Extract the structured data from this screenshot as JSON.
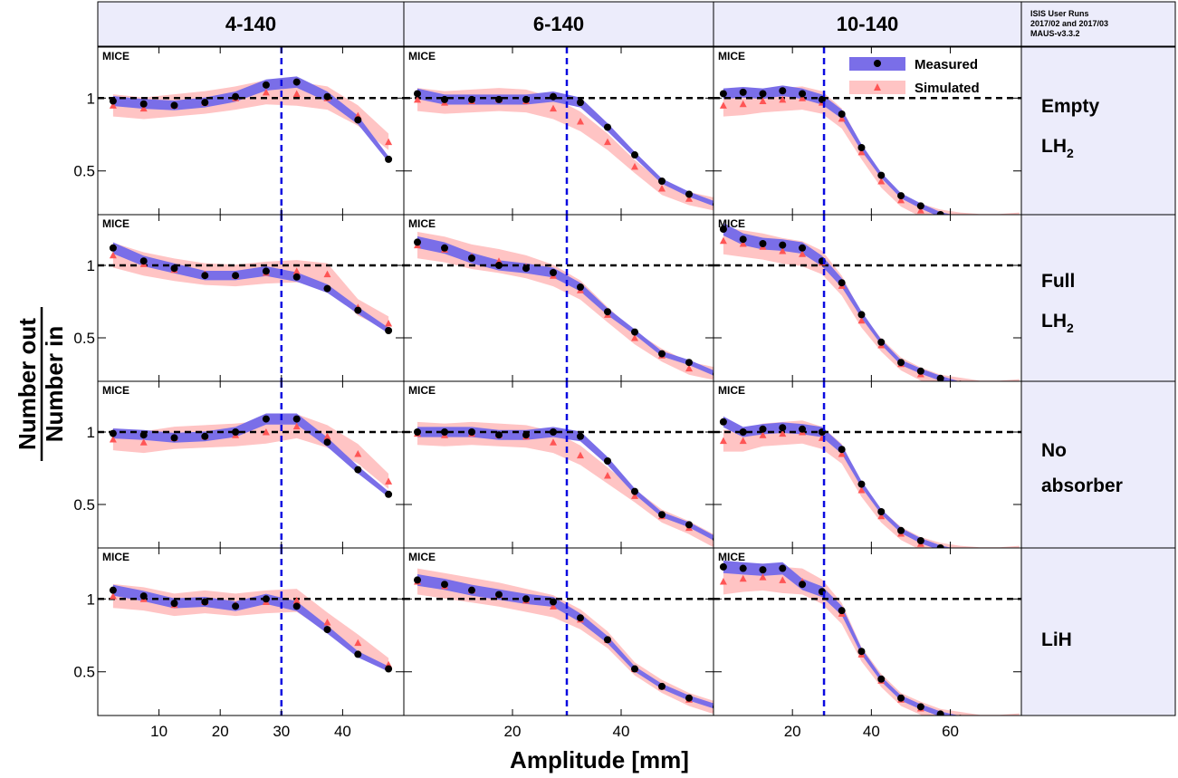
{
  "figure": {
    "ylabel_numerator": "Number out",
    "ylabel_denominator": "Number in",
    "xlabel": "Amplitude [mm]",
    "note_lines": [
      "ISIS User Runs",
      "2017/02 and 2017/03",
      "MAUS-v3.3.2"
    ],
    "panel_label": "MICE",
    "legend": {
      "measured": "Measured",
      "simulated": "Simulated"
    },
    "ytick_labels": [
      "1",
      "0.5"
    ],
    "colors": {
      "header_bg": "#ececfb",
      "measured_band": "#7a6ee8",
      "simulated_band": "#ffc4c4",
      "measured_marker": "#000000",
      "simulated_marker": "#ff5555",
      "cut_line": "#0a0ae0",
      "unity_line": "#000000"
    }
  },
  "chart_data": [
    {
      "type": "scatter",
      "title": "4-140",
      "xlabel": "Amplitude [mm]",
      "ylabel": "Number out / Number in",
      "xlim": [
        0,
        50
      ],
      "ylim": [
        0.2,
        1.35
      ],
      "xticks": [
        10,
        20,
        30,
        40
      ],
      "yticks": [
        0.5,
        1
      ],
      "cut_x": 30,
      "rows": [
        {
          "row": "Empty LH2",
          "x": [
            2.5,
            7.5,
            12.5,
            17.5,
            22.5,
            27.5,
            32.5,
            37.5,
            42.5,
            47.5
          ],
          "measured": [
            0.98,
            0.96,
            0.95,
            0.97,
            1.01,
            1.09,
            1.11,
            1.01,
            0.85,
            0.58
          ],
          "simulated": [
            0.95,
            0.93,
            0.95,
            0.97,
            1.0,
            1.04,
            1.03,
            1.0,
            0.88,
            0.7
          ]
        },
        {
          "row": "Full LH2",
          "x": [
            2.5,
            7.5,
            12.5,
            17.5,
            22.5,
            27.5,
            32.5,
            37.5,
            42.5,
            47.5
          ],
          "measured": [
            1.12,
            1.03,
            0.98,
            0.93,
            0.93,
            0.96,
            0.92,
            0.84,
            0.69,
            0.55
          ],
          "simulated": [
            1.07,
            1.01,
            0.97,
            0.94,
            0.93,
            0.95,
            0.96,
            0.94,
            0.71,
            0.6
          ]
        },
        {
          "row": "No absorber",
          "x": [
            2.5,
            7.5,
            12.5,
            17.5,
            22.5,
            27.5,
            32.5,
            37.5,
            42.5,
            47.5
          ],
          "measured": [
            0.99,
            0.98,
            0.96,
            0.97,
            1.0,
            1.09,
            1.09,
            0.93,
            0.74,
            0.57
          ],
          "simulated": [
            0.95,
            0.93,
            0.96,
            0.97,
            0.98,
            1.0,
            1.04,
            0.97,
            0.85,
            0.66
          ]
        },
        {
          "row": "LiH",
          "x": [
            2.5,
            7.5,
            12.5,
            17.5,
            22.5,
            27.5,
            32.5,
            37.5,
            42.5,
            47.5
          ],
          "measured": [
            1.06,
            1.02,
            0.97,
            0.98,
            0.95,
            1.0,
            0.95,
            0.79,
            0.62,
            0.52
          ],
          "simulated": [
            1.02,
            1.0,
            0.96,
            0.98,
            0.96,
            0.98,
            0.99,
            0.84,
            0.7,
            0.55
          ]
        }
      ]
    },
    {
      "type": "scatter",
      "title": "6-140",
      "xlabel": "Amplitude [mm]",
      "ylabel": "Number out / Number in",
      "xlim": [
        0,
        57
      ],
      "ylim": [
        0.2,
        1.35
      ],
      "xticks": [
        20,
        40
      ],
      "yticks": [
        0.5,
        1
      ],
      "cut_x": 30,
      "rows": [
        {
          "row": "Empty LH2",
          "x": [
            2.5,
            7.5,
            12.5,
            17.5,
            22.5,
            27.5,
            32.5,
            37.5,
            42.5,
            47.5,
            52.5,
            57.5
          ],
          "measured": [
            1.03,
            0.99,
            0.99,
            0.99,
            0.99,
            1.01,
            0.97,
            0.8,
            0.61,
            0.43,
            0.34,
            0.27
          ],
          "simulated": [
            0.99,
            0.97,
            0.98,
            0.99,
            0.98,
            0.93,
            0.84,
            0.7,
            0.53,
            0.38,
            0.31,
            0.27
          ]
        },
        {
          "row": "Full LH2",
          "x": [
            2.5,
            7.5,
            12.5,
            17.5,
            22.5,
            27.5,
            32.5,
            37.5,
            42.5,
            47.5,
            52.5,
            57.5
          ],
          "measured": [
            1.16,
            1.12,
            1.05,
            1.0,
            0.98,
            0.95,
            0.85,
            0.68,
            0.54,
            0.39,
            0.33,
            0.25
          ],
          "simulated": [
            1.14,
            1.11,
            1.06,
            1.03,
            0.99,
            0.93,
            0.83,
            0.66,
            0.5,
            0.38,
            0.29,
            0.25
          ]
        },
        {
          "row": "No absorber",
          "x": [
            2.5,
            7.5,
            12.5,
            17.5,
            22.5,
            27.5,
            32.5,
            37.5,
            42.5,
            47.5,
            52.5,
            57.5
          ],
          "measured": [
            1.0,
            1.0,
            1.0,
            0.98,
            0.98,
            1.0,
            0.97,
            0.8,
            0.59,
            0.43,
            0.36,
            0.26
          ],
          "simulated": [
            0.99,
            0.98,
            0.99,
            0.98,
            0.97,
            0.93,
            0.84,
            0.7,
            0.56,
            0.42,
            0.34,
            0.24
          ]
        },
        {
          "row": "LiH",
          "x": [
            2.5,
            7.5,
            12.5,
            17.5,
            22.5,
            27.5,
            32.5,
            37.5,
            42.5,
            47.5,
            52.5,
            57.5
          ],
          "measured": [
            1.13,
            1.1,
            1.06,
            1.03,
            1.0,
            0.98,
            0.87,
            0.72,
            0.52,
            0.4,
            0.32,
            0.26
          ],
          "simulated": [
            1.12,
            1.09,
            1.06,
            1.03,
            0.99,
            0.95,
            0.86,
            0.72,
            0.52,
            0.4,
            0.31,
            0.25
          ]
        }
      ]
    },
    {
      "type": "scatter",
      "title": "10-140",
      "xlabel": "Amplitude [mm]",
      "ylabel": "Number out / Number in",
      "xlim": [
        0,
        78
      ],
      "ylim": [
        0.2,
        1.35
      ],
      "xticks": [
        20,
        40,
        60
      ],
      "yticks": [
        0.5,
        1
      ],
      "cut_x": 28,
      "rows": [
        {
          "row": "Empty LH2",
          "x": [
            2.5,
            7.5,
            12.5,
            17.5,
            22.5,
            27.5,
            32.5,
            37.5,
            42.5,
            47.5,
            52.5,
            57.5,
            62.5,
            67.5,
            72.5,
            77.5
          ],
          "measured": [
            1.03,
            1.04,
            1.03,
            1.05,
            1.03,
            0.99,
            0.89,
            0.66,
            0.47,
            0.33,
            0.26,
            0.2,
            0.17,
            0.16,
            0.15,
            0.16
          ],
          "simulated": [
            0.95,
            0.96,
            0.98,
            0.99,
            1.0,
            0.97,
            0.86,
            0.63,
            0.43,
            0.3,
            0.23,
            0.19,
            0.17,
            0.16,
            0.16,
            0.17
          ]
        },
        {
          "row": "Full LH2",
          "x": [
            2.5,
            7.5,
            12.5,
            17.5,
            22.5,
            27.5,
            32.5,
            37.5,
            42.5,
            47.5,
            52.5,
            57.5,
            62.5,
            67.5,
            72.5,
            77.5
          ],
          "measured": [
            1.25,
            1.18,
            1.15,
            1.14,
            1.12,
            1.03,
            0.88,
            0.66,
            0.47,
            0.33,
            0.27,
            0.22,
            0.18,
            0.16,
            0.16,
            0.17
          ],
          "simulated": [
            1.17,
            1.15,
            1.13,
            1.1,
            1.08,
            1.02,
            0.86,
            0.62,
            0.45,
            0.32,
            0.25,
            0.2,
            0.18,
            0.16,
            0.16,
            0.17
          ]
        },
        {
          "row": "No absorber",
          "x": [
            2.5,
            7.5,
            12.5,
            17.5,
            22.5,
            27.5,
            32.5,
            37.5,
            42.5,
            47.5,
            52.5,
            57.5,
            62.5,
            67.5,
            72.5,
            77.5
          ],
          "measured": [
            1.07,
            1.0,
            1.02,
            1.03,
            1.02,
            1.0,
            0.88,
            0.64,
            0.45,
            0.32,
            0.25,
            0.2,
            0.17,
            0.16,
            0.15,
            0.16
          ],
          "simulated": [
            0.94,
            0.94,
            0.98,
            0.99,
            1.0,
            0.96,
            0.85,
            0.6,
            0.42,
            0.3,
            0.23,
            0.19,
            0.17,
            0.16,
            0.16,
            0.17
          ]
        },
        {
          "row": "LiH",
          "x": [
            2.5,
            7.5,
            12.5,
            17.5,
            22.5,
            27.5,
            32.5,
            37.5,
            42.5,
            47.5,
            52.5,
            57.5,
            62.5,
            67.5,
            72.5,
            77.5
          ],
          "measured": [
            1.22,
            1.21,
            1.2,
            1.21,
            1.1,
            1.05,
            0.92,
            0.64,
            0.45,
            0.32,
            0.26,
            0.21,
            0.18,
            0.16,
            0.16,
            0.17
          ],
          "simulated": [
            1.12,
            1.14,
            1.15,
            1.13,
            1.12,
            1.05,
            0.9,
            0.62,
            0.44,
            0.31,
            0.25,
            0.2,
            0.18,
            0.16,
            0.16,
            0.17
          ]
        }
      ]
    }
  ]
}
